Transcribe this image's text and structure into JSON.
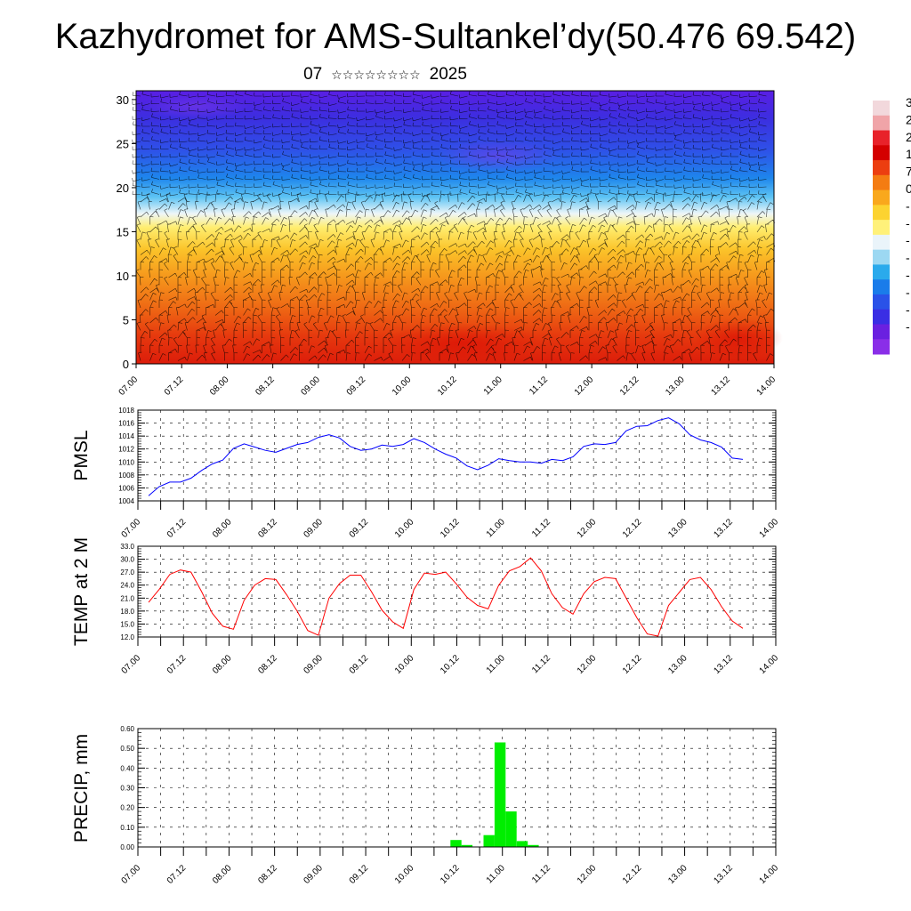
{
  "title": "Kazhydromet for AMS-Sultankel’dy(50.476 69.542)",
  "subtitle": {
    "day": "07",
    "month_glyphs": "☆☆☆☆☆☆☆☆",
    "year": "2025"
  },
  "time_ticks": [
    "07.00",
    "07.12",
    "08.00",
    "08.12",
    "09.00",
    "09.12",
    "10.00",
    "10.12",
    "11.00",
    "11.12",
    "12.00",
    "12.12",
    "13.00",
    "13.12",
    "14.00"
  ],
  "colors": {
    "pmsl_line": "#0000ff",
    "temp_line": "#ff0000",
    "precip_bar": "#00ee00"
  },
  "chart_data": [
    {
      "type": "heatmap",
      "name": "cross-section",
      "yticks": [
        0,
        5,
        10,
        15,
        20,
        25,
        30
      ],
      "ylim": [
        0,
        31
      ],
      "overlay": "wind-barbs",
      "colorbar": {
        "labels": [
          "3",
          "2",
          "2",
          "1",
          "7",
          "0",
          "-",
          "-",
          "-",
          "-",
          "-",
          "-",
          "-",
          "-"
        ],
        "colors": [
          "#f2d8dc",
          "#f0a4a8",
          "#e8222a",
          "#d40000",
          "#ec3e10",
          "#f47c12",
          "#f9a81c",
          "#fcd330",
          "#fff17a",
          "#eaf4fa",
          "#9cd8f2",
          "#2aaaec",
          "#1a7cea",
          "#2a52e8",
          "#3a2ee4",
          "#6a20e0",
          "#8a2ee8"
        ]
      }
    },
    {
      "type": "line",
      "ylabel": "PMSL",
      "ylim": [
        1004,
        1018
      ],
      "yticks": [
        "1004",
        "1006",
        "1008",
        "1010",
        "1012",
        "1014",
        "1016",
        "1018"
      ],
      "x_hours": [
        0,
        3,
        6,
        9,
        12,
        15,
        18,
        21,
        24,
        27,
        30,
        33,
        36,
        39,
        42,
        45,
        48,
        51,
        54,
        57,
        60,
        63,
        66,
        69,
        72,
        75,
        78,
        81,
        84,
        87,
        90,
        93,
        96,
        99,
        102,
        105,
        108,
        111,
        114,
        117,
        120,
        123,
        126,
        129,
        132,
        135,
        138,
        141,
        144,
        147,
        150,
        153,
        156,
        159,
        162,
        165,
        168
      ],
      "values": [
        1004.8,
        1006.2,
        1006.9,
        1006.9,
        1007.5,
        1008.7,
        1009.7,
        1010.3,
        1012.1,
        1012.8,
        1012.3,
        1011.8,
        1011.5,
        1012.1,
        1012.7,
        1013.0,
        1013.8,
        1014.2,
        1013.7,
        1012.4,
        1011.8,
        1012.0,
        1012.6,
        1012.4,
        1012.7,
        1013.6,
        1013.0,
        1012.0,
        1011.2,
        1010.6,
        1009.4,
        1008.8,
        1009.5,
        1010.5,
        1010.2,
        1010.0,
        1010.0,
        1009.8,
        1010.4,
        1010.2,
        1010.8,
        1012.4,
        1012.8,
        1012.7,
        1013.0,
        1014.8,
        1015.5,
        1015.6,
        1016.4,
        1016.8,
        1015.9,
        1014.2,
        1013.4,
        1013.0,
        1012.3,
        1010.6,
        1010.4
      ]
    },
    {
      "type": "line",
      "ylabel": "TEMP at 2 M",
      "ylim": [
        12,
        33
      ],
      "yticks": [
        "12.0",
        "15.0",
        "18.0",
        "21.0",
        "24.0",
        "27.0",
        "30.0",
        "33.0"
      ],
      "x_hours": [
        0,
        3,
        6,
        9,
        12,
        15,
        18,
        21,
        24,
        27,
        30,
        33,
        36,
        39,
        42,
        45,
        48,
        51,
        54,
        57,
        60,
        63,
        66,
        69,
        72,
        75,
        78,
        81,
        84,
        87,
        90,
        93,
        96,
        99,
        102,
        105,
        108,
        111,
        114,
        117,
        120,
        123,
        126,
        129,
        132,
        135,
        138,
        141,
        144,
        147,
        150,
        153,
        156,
        159,
        162,
        165,
        168
      ],
      "values": [
        20.0,
        23.0,
        26.5,
        27.5,
        27.0,
        22.5,
        17.5,
        14.5,
        13.8,
        20.5,
        24.0,
        25.5,
        25.3,
        21.8,
        18.0,
        13.5,
        12.4,
        21.0,
        24.4,
        26.3,
        26.3,
        22.5,
        18.2,
        15.5,
        14.0,
        23.0,
        26.8,
        26.5,
        27.0,
        24.3,
        21.2,
        19.3,
        18.5,
        24.0,
        27.3,
        28.3,
        30.3,
        27.3,
        22.0,
        18.8,
        17.3,
        22.0,
        24.8,
        25.8,
        25.5,
        21.0,
        16.5,
        12.7,
        12.2,
        19.3,
        22.3,
        25.3,
        25.8,
        23.0,
        19.0,
        15.7,
        14.0
      ]
    },
    {
      "type": "bar",
      "ylabel": "PRECIP, mm",
      "ylim": [
        0,
        0.6
      ],
      "yticks": [
        "0.00",
        "0.10",
        "0.20",
        "0.30",
        "0.40",
        "0.50",
        "0.60"
      ],
      "bars": [
        {
          "hour": 84,
          "value": 0.035
        },
        {
          "hour": 87,
          "value": 0.01
        },
        {
          "hour": 93,
          "value": 0.06
        },
        {
          "hour": 96,
          "value": 0.53
        },
        {
          "hour": 99,
          "value": 0.18
        },
        {
          "hour": 102,
          "value": 0.03
        },
        {
          "hour": 105,
          "value": 0.01
        }
      ]
    }
  ]
}
